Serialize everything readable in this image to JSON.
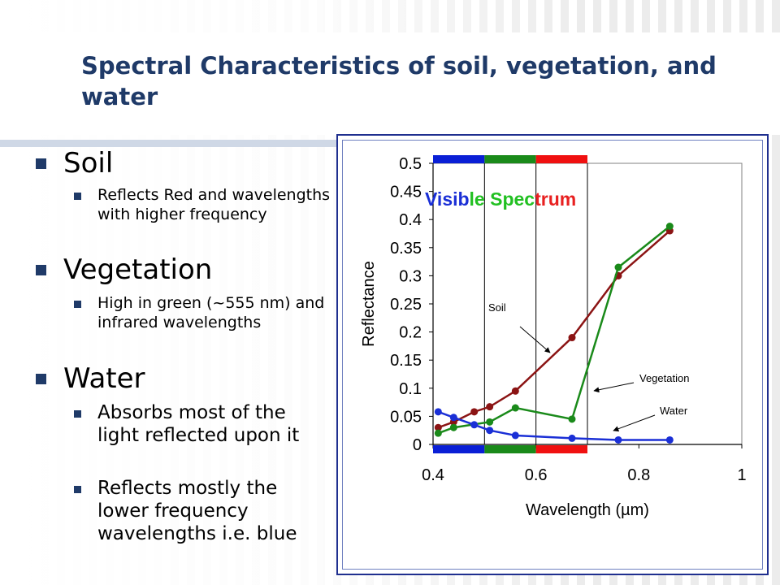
{
  "slide": {
    "title": "Spectral Characteristics of soil, vegetation, and water",
    "bullets": [
      {
        "heading": "Soil",
        "subs": [
          "Reflects Red and wavelengths with higher frequency"
        ]
      },
      {
        "heading": "Vegetation",
        "subs": [
          "High in green (~555 nm) and infrared wavelengths"
        ]
      },
      {
        "heading": "Water",
        "subs": [
          "Absorbs most of the light reflected upon it",
          "Reflects mostly the lower frequency wavelengths i.e. blue"
        ]
      }
    ]
  },
  "chart_data": {
    "type": "line",
    "title": "",
    "xlabel": "Wavelength (µm)",
    "ylabel": "Reflectance",
    "xlim": [
      0.4,
      1
    ],
    "ylim": [
      0,
      0.5
    ],
    "xticks": [
      "0.4",
      "0.6",
      "0.8",
      "1"
    ],
    "yticks": [
      "0",
      "0.05",
      "0.1",
      "0.15",
      "0.2",
      "0.25",
      "0.3",
      "0.35",
      "0.4",
      "0.45",
      "0.5"
    ],
    "grid": false,
    "visible_spectrum_label": [
      "Visib",
      "le ",
      "Spec",
      "trum"
    ],
    "colors": {
      "blue": "#0a1fd6",
      "green": "#1a8a1a",
      "red": "#f01010",
      "soil": "#8b1414",
      "vegetation": "#1a8a1a",
      "water": "#1a2fd6",
      "label_green": "#22c022",
      "label_red": "#e82020"
    },
    "bands": [
      {
        "x0": 0.4,
        "x1": 0.5,
        "color": "blue"
      },
      {
        "x0": 0.5,
        "x1": 0.6,
        "color": "green"
      },
      {
        "x0": 0.6,
        "x1": 0.7,
        "color": "red"
      }
    ],
    "series": [
      {
        "name": "Soil",
        "x": [
          0.41,
          0.44,
          0.48,
          0.51,
          0.56,
          0.67,
          0.76,
          0.86
        ],
        "values": [
          0.03,
          0.04,
          0.058,
          0.067,
          0.095,
          0.19,
          0.3,
          0.38
        ]
      },
      {
        "name": "Vegetation",
        "x": [
          0.41,
          0.44,
          0.51,
          0.56,
          0.67,
          0.76,
          0.86
        ],
        "values": [
          0.02,
          0.03,
          0.04,
          0.065,
          0.045,
          0.315,
          0.388
        ]
      },
      {
        "name": "Water",
        "x": [
          0.41,
          0.44,
          0.48,
          0.51,
          0.56,
          0.67,
          0.76,
          0.86
        ],
        "values": [
          0.058,
          0.048,
          0.035,
          0.025,
          0.016,
          0.011,
          0.008,
          0.008
        ]
      }
    ],
    "annotations": [
      "Soil",
      "Vegetation",
      "Water"
    ]
  }
}
